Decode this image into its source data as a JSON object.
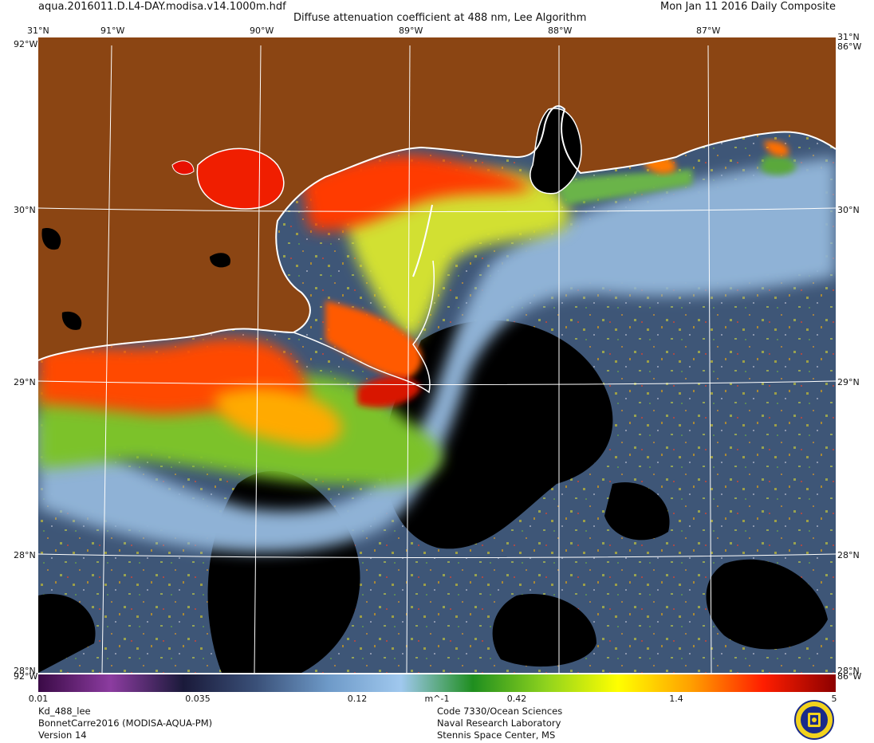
{
  "header": {
    "file_name": "aqua.2016011.D.L4-DAY.modisa.v14.1000m.hdf",
    "title": "Diffuse attenuation coefficient at 488 nm, Lee Algorithm",
    "date": "Mon Jan 11 2016 Daily Composite"
  },
  "map": {
    "lon_labels": [
      "91°W",
      "90°W",
      "89°W",
      "88°W",
      "87°W"
    ],
    "lat_labels": [
      "30°N",
      "29°N",
      "28°N"
    ],
    "corner_top_left": "31°N",
    "corner_top_right": "31°N",
    "corner_side_top_left": "92°W",
    "corner_side_top_right": "86°W",
    "corner_bottom_left": "28°N",
    "corner_bottom_right": "28°N",
    "corner_side_bottom_left": "92°W",
    "corner_side_bottom_right": "86°W",
    "colors": {
      "land": "#8b4513",
      "no_data": "#000000",
      "coast": "#ffffff",
      "grid": "#ffffff"
    }
  },
  "colorbar": {
    "ticks": [
      "0.01",
      "0.035",
      "0.12",
      "m^-1",
      "0.42",
      "1.4",
      "5"
    ],
    "stops": [
      "#3a0a46",
      "#8c3ca0",
      "#1a1a3a",
      "#3a5078",
      "#6e9ac8",
      "#a0c8ee",
      "#1f8e1f",
      "#8ed21e",
      "#ffff00",
      "#ffa000",
      "#ff1e00",
      "#8c0000"
    ]
  },
  "footer": {
    "left": [
      "Kd_488_lee",
      "BonnetCarre2016 (MODISA-AQUA-PM)",
      "Version 14"
    ],
    "right": [
      "Code 7330/Ocean Sciences",
      "Naval Research Laboratory",
      "Stennis Space Center, MS"
    ]
  },
  "logo": {
    "name": "naval-research-laboratory-seal"
  }
}
